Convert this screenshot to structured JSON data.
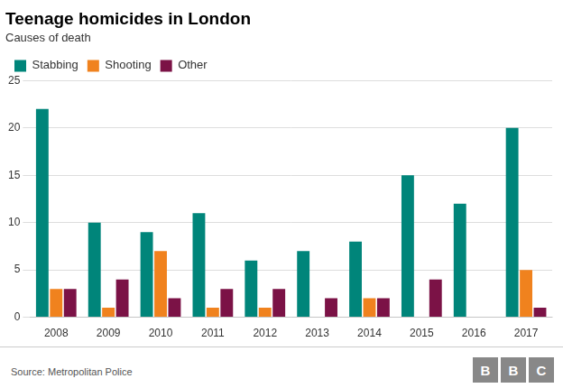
{
  "chart_data": {
    "type": "bar",
    "title": "Teenage homicides in London",
    "subtitle": "Causes of death",
    "categories": [
      "2008",
      "2009",
      "2010",
      "2011",
      "2012",
      "2013",
      "2014",
      "2015",
      "2016",
      "2017"
    ],
    "series": [
      {
        "name": "Stabbing",
        "color": "#00857a",
        "values": [
          22,
          10,
          9,
          11,
          6,
          7,
          8,
          15,
          12,
          20
        ]
      },
      {
        "name": "Shooting",
        "color": "#f0821e",
        "values": [
          3,
          1,
          7,
          1,
          1,
          0,
          2,
          0,
          0,
          5
        ]
      },
      {
        "name": "Other",
        "color": "#7b1246",
        "values": [
          3,
          4,
          2,
          3,
          3,
          2,
          2,
          4,
          0,
          1
        ]
      }
    ],
    "ylim": [
      0,
      25
    ],
    "yticks": [
      0,
      5,
      10,
      15,
      20,
      25
    ],
    "grid": true,
    "legend": "top left",
    "annotations": [
      "Source: Metropolitan Police",
      "BBC"
    ]
  }
}
